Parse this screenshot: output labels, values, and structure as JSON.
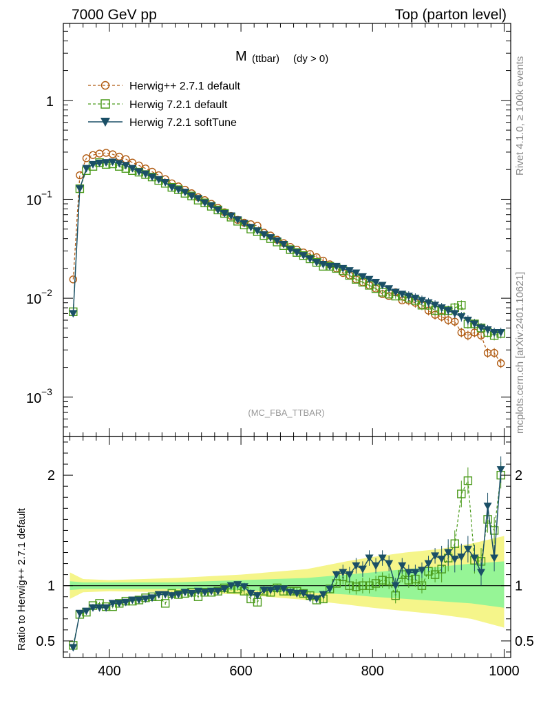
{
  "header": {
    "energy_label": "7000 GeV pp",
    "process_label": "Top (parton level)",
    "title_main": "M",
    "title_sub": "(ttbar)",
    "title_cut": "(dy > 0)",
    "analysis_tag": "(MC_FBA_TTBAR)",
    "side_rivet": "Rivet 4.1.0, ≥ 100k events",
    "side_mcplots": "mcplots.cern.ch [arXiv:2401.10621]"
  },
  "colors": {
    "herwigpp_271": "#b05a10",
    "herwig_721_default": "#4a9a1a",
    "herwig_721_softtune": "#1a4f66",
    "band_inner": "#96f596",
    "band_outer": "#f5f58a"
  },
  "chart_data": [
    {
      "type": "line",
      "title": "M (ttbar) (dy > 0)",
      "xlabel": "",
      "ylabel": "",
      "xlim": [
        330,
        1010
      ],
      "ylim": [
        0.0004,
        6
      ],
      "yscale": "log",
      "x_ticks": [
        400,
        600,
        800,
        1000
      ],
      "y_ticks": [
        {
          "value": 0.001,
          "label": "10",
          "exp": "−3"
        },
        {
          "value": 0.01,
          "label": "10",
          "exp": "−2"
        },
        {
          "value": 0.1,
          "label": "10",
          "exp": "−1"
        },
        {
          "value": 1,
          "label": "1",
          "exp": ""
        }
      ],
      "legend": [
        {
          "name": "Herwig++ 2.7.1 default",
          "marker": "circle"
        },
        {
          "name": "Herwig 7.2.1 default",
          "marker": "square"
        },
        {
          "name": "Herwig 7.2.1 softTune",
          "marker": "triangle-down"
        }
      ],
      "x": [
        345,
        355,
        365,
        375,
        385,
        395,
        405,
        415,
        425,
        435,
        445,
        455,
        465,
        475,
        485,
        495,
        505,
        515,
        525,
        535,
        545,
        555,
        565,
        575,
        585,
        595,
        605,
        615,
        625,
        635,
        645,
        655,
        665,
        675,
        685,
        695,
        705,
        715,
        725,
        735,
        745,
        755,
        765,
        775,
        785,
        795,
        805,
        815,
        825,
        835,
        845,
        855,
        865,
        875,
        885,
        895,
        905,
        915,
        925,
        935,
        945,
        955,
        965,
        975,
        985,
        995
      ],
      "series": [
        {
          "name": "Herwig++ 2.7.1 default",
          "values": [
            0.0155,
            0.175,
            0.26,
            0.28,
            0.29,
            0.295,
            0.285,
            0.27,
            0.255,
            0.235,
            0.22,
            0.205,
            0.19,
            0.175,
            0.16,
            0.145,
            0.135,
            0.125,
            0.115,
            0.105,
            0.098,
            0.09,
            0.082,
            0.074,
            0.068,
            0.062,
            0.058,
            0.056,
            0.054,
            0.046,
            0.043,
            0.039,
            0.036,
            0.033,
            0.031,
            0.029,
            0.028,
            0.026,
            0.024,
            0.022,
            0.02,
            0.018,
            0.017,
            0.0155,
            0.0145,
            0.0135,
            0.0125,
            0.011,
            0.0105,
            0.0115,
            0.0095,
            0.0095,
            0.009,
            0.0085,
            0.0075,
            0.0068,
            0.0065,
            0.006,
            0.0058,
            0.0045,
            0.0042,
            0.0045,
            0.0042,
            0.0028,
            0.0028,
            0.0022
          ]
        },
        {
          "name": "Herwig 7.2.1 default",
          "values": [
            0.0073,
            0.128,
            0.195,
            0.215,
            0.235,
            0.225,
            0.228,
            0.215,
            0.205,
            0.195,
            0.188,
            0.178,
            0.168,
            0.155,
            0.145,
            0.132,
            0.125,
            0.115,
            0.108,
            0.098,
            0.092,
            0.085,
            0.078,
            0.072,
            0.066,
            0.06,
            0.055,
            0.05,
            0.047,
            0.043,
            0.04,
            0.037,
            0.034,
            0.031,
            0.029,
            0.027,
            0.025,
            0.023,
            0.021,
            0.021,
            0.02,
            0.019,
            0.017,
            0.0155,
            0.0145,
            0.0135,
            0.0125,
            0.0115,
            0.011,
            0.0105,
            0.0105,
            0.01,
            0.0095,
            0.0085,
            0.0085,
            0.0075,
            0.0075,
            0.0075,
            0.008,
            0.0085,
            0.0055,
            0.0055,
            0.005,
            0.0045,
            0.0042,
            0.0044
          ]
        },
        {
          "name": "Herwig 7.2.1 softTune",
          "values": [
            0.007,
            0.128,
            0.205,
            0.225,
            0.232,
            0.235,
            0.238,
            0.23,
            0.22,
            0.205,
            0.19,
            0.18,
            0.168,
            0.158,
            0.148,
            0.132,
            0.125,
            0.118,
            0.108,
            0.102,
            0.092,
            0.086,
            0.078,
            0.072,
            0.068,
            0.062,
            0.057,
            0.052,
            0.048,
            0.044,
            0.041,
            0.038,
            0.035,
            0.031,
            0.029,
            0.027,
            0.025,
            0.023,
            0.022,
            0.021,
            0.021,
            0.02,
            0.019,
            0.018,
            0.0165,
            0.0155,
            0.0145,
            0.0135,
            0.0125,
            0.0115,
            0.011,
            0.0105,
            0.01,
            0.0095,
            0.009,
            0.0085,
            0.008,
            0.0075,
            0.007,
            0.0065,
            0.006,
            0.0055,
            0.005,
            0.0048,
            0.0045,
            0.0045
          ]
        }
      ]
    },
    {
      "type": "line",
      "title": "",
      "xlabel": "",
      "ylabel": "Ratio to Herwig++ 2.7.1 default",
      "xlim": [
        330,
        1010
      ],
      "ylim": [
        0.35,
        2.35
      ],
      "x_ticks": [
        400,
        600,
        800,
        1000
      ],
      "y_ticks": [
        {
          "value": 0.5,
          "label": "0.5"
        },
        {
          "value": 1,
          "label": "1"
        },
        {
          "value": 2,
          "label": "2"
        }
      ],
      "x": [
        345,
        355,
        365,
        375,
        385,
        395,
        405,
        415,
        425,
        435,
        445,
        455,
        465,
        475,
        485,
        495,
        505,
        515,
        525,
        535,
        545,
        555,
        565,
        575,
        585,
        595,
        605,
        615,
        625,
        635,
        645,
        655,
        665,
        675,
        685,
        695,
        705,
        715,
        725,
        735,
        745,
        755,
        765,
        775,
        785,
        795,
        805,
        815,
        825,
        835,
        845,
        855,
        865,
        875,
        885,
        895,
        905,
        915,
        925,
        935,
        945,
        955,
        965,
        975,
        985,
        995
      ],
      "series": [
        {
          "name": "Herwig 7.2.1 default",
          "values": [
            0.46,
            0.74,
            0.76,
            0.82,
            0.84,
            0.81,
            0.81,
            0.84,
            0.86,
            0.86,
            0.87,
            0.89,
            0.9,
            0.9,
            0.84,
            0.93,
            0.92,
            0.93,
            0.94,
            0.9,
            0.94,
            0.94,
            0.95,
            0.98,
            0.97,
            0.97,
            0.95,
            0.88,
            0.85,
            0.95,
            0.94,
            0.98,
            0.95,
            0.95,
            0.95,
            0.93,
            0.91,
            0.87,
            0.88,
            0.97,
            1.02,
            1.08,
            1.0,
            0.99,
            1.0,
            1.0,
            1.02,
            1.05,
            1.04,
            0.91,
            1.1,
            1.05,
            1.06,
            1.0,
            1.13,
            1.1,
            1.15,
            1.25,
            1.38,
            1.83,
            1.95,
            1.23,
            1.22,
            1.6,
            1.5,
            2.0
          ],
          "markers": [
            0.46,
            0.74,
            0.76,
            0.82,
            0.84,
            0.81,
            0.81,
            0.84,
            0.86,
            0.86,
            0.87,
            0.89,
            0.9,
            0.9,
            0.84,
            0.93,
            0.92,
            0.93,
            0.94,
            0.9,
            0.94,
            0.94,
            0.95,
            0.98,
            0.97,
            0.97,
            0.95,
            0.88,
            0.85,
            0.95,
            0.94,
            0.98,
            0.95,
            0.95,
            0.95,
            0.93,
            0.91,
            0.87,
            0.88,
            0.97,
            1.02,
            1.08,
            1.0,
            0.99,
            1.0,
            1.0,
            1.02,
            1.05,
            1.04,
            0.91,
            1.1,
            1.05,
            1.06,
            1.0,
            1.13,
            1.1,
            1.15,
            1.25,
            1.38,
            1.83,
            1.95,
            1.23,
            1.22,
            1.6,
            1.5,
            2.0
          ]
        },
        {
          "name": "Herwig 7.2.1 softTune",
          "values": [
            0.44,
            0.75,
            0.77,
            0.8,
            0.8,
            0.8,
            0.84,
            0.84,
            0.85,
            0.87,
            0.87,
            0.88,
            0.89,
            0.92,
            0.92,
            0.91,
            0.92,
            0.94,
            0.93,
            0.95,
            0.94,
            0.95,
            0.95,
            0.97,
            1.0,
            1.01,
            0.99,
            0.93,
            0.91,
            0.96,
            0.96,
            0.97,
            0.97,
            0.94,
            0.93,
            0.93,
            0.89,
            0.88,
            0.92,
            0.97,
            1.1,
            1.12,
            1.1,
            1.18,
            1.15,
            1.25,
            1.18,
            1.25,
            1.2,
            1.0,
            1.18,
            1.12,
            1.12,
            1.14,
            1.2,
            1.27,
            1.24,
            1.3,
            1.24,
            1.26,
            1.33,
            1.25,
            1.12,
            1.72,
            1.25,
            2.05
          ]
        }
      ],
      "band_inner": [
        [
          340,
          0.96,
          1.04
        ],
        [
          360,
          0.97,
          1.03
        ],
        [
          400,
          0.97,
          1.03
        ],
        [
          500,
          0.97,
          1.03
        ],
        [
          600,
          0.96,
          1.05
        ],
        [
          700,
          0.94,
          1.07
        ],
        [
          760,
          0.92,
          1.1
        ],
        [
          800,
          0.9,
          1.12
        ],
        [
          850,
          0.88,
          1.15
        ],
        [
          900,
          0.86,
          1.17
        ],
        [
          950,
          0.84,
          1.2
        ],
        [
          1000,
          0.8,
          1.22
        ]
      ],
      "band_outer": [
        [
          340,
          0.88,
          1.12
        ],
        [
          360,
          0.94,
          1.06
        ],
        [
          400,
          0.95,
          1.05
        ],
        [
          500,
          0.94,
          1.07
        ],
        [
          600,
          0.92,
          1.1
        ],
        [
          700,
          0.87,
          1.15
        ],
        [
          760,
          0.83,
          1.22
        ],
        [
          800,
          0.8,
          1.26
        ],
        [
          850,
          0.77,
          1.3
        ],
        [
          900,
          0.74,
          1.33
        ],
        [
          950,
          0.7,
          1.38
        ],
        [
          1000,
          0.62,
          1.45
        ]
      ]
    }
  ]
}
